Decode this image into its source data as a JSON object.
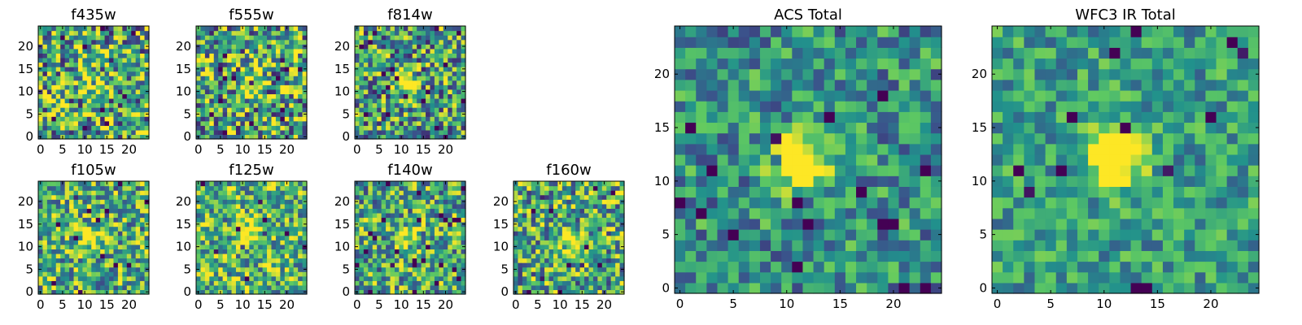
{
  "figure": {
    "colormap": "viridis",
    "colormap_stops": [
      "#440154",
      "#3b528b",
      "#21918c",
      "#5ec962",
      "#fde725"
    ]
  },
  "chart_data": [
    {
      "type": "heatmap",
      "title": "f435w",
      "grid_size": 25,
      "xlim": [
        0,
        24
      ],
      "ylim": [
        0,
        24
      ],
      "xticks": [
        0,
        5,
        10,
        15,
        20
      ],
      "yticks": [
        0,
        5,
        10,
        15,
        20
      ],
      "blob_center": [
        11,
        12
      ],
      "blob_strength": 0.25,
      "noise_level": 1.0,
      "base_level": 0.6,
      "seed": 11
    },
    {
      "type": "heatmap",
      "title": "f555w",
      "grid_size": 25,
      "xlim": [
        0,
        24
      ],
      "ylim": [
        0,
        24
      ],
      "xticks": [
        0,
        5,
        10,
        15,
        20
      ],
      "yticks": [
        0,
        5,
        10,
        15,
        20
      ],
      "blob_center": [
        11,
        12
      ],
      "blob_strength": 0.35,
      "noise_level": 1.0,
      "base_level": 0.6,
      "seed": 23
    },
    {
      "type": "heatmap",
      "title": "f814w",
      "grid_size": 25,
      "xlim": [
        0,
        24
      ],
      "ylim": [
        0,
        24
      ],
      "xticks": [
        0,
        5,
        10,
        15,
        20
      ],
      "yticks": [
        0,
        5,
        10,
        15,
        20
      ],
      "blob_center": [
        11,
        12
      ],
      "blob_strength": 0.8,
      "noise_level": 0.9,
      "base_level": 0.55,
      "seed": 37
    },
    {
      "type": "heatmap",
      "title": "f105w",
      "grid_size": 25,
      "xlim": [
        0,
        24
      ],
      "ylim": [
        0,
        24
      ],
      "xticks": [
        0,
        5,
        10,
        15,
        20
      ],
      "yticks": [
        0,
        5,
        10,
        15,
        20
      ],
      "blob_center": [
        11,
        12
      ],
      "blob_strength": 0.5,
      "noise_level": 0.8,
      "base_level": 0.62,
      "seed": 41
    },
    {
      "type": "heatmap",
      "title": "f125w",
      "grid_size": 25,
      "xlim": [
        0,
        24
      ],
      "ylim": [
        0,
        24
      ],
      "xticks": [
        0,
        5,
        10,
        15,
        20
      ],
      "yticks": [
        0,
        5,
        10,
        15,
        20
      ],
      "blob_center": [
        12,
        13
      ],
      "blob_strength": 0.45,
      "noise_level": 0.8,
      "base_level": 0.66,
      "seed": 53
    },
    {
      "type": "heatmap",
      "title": "f140w",
      "grid_size": 25,
      "xlim": [
        0,
        24
      ],
      "ylim": [
        0,
        24
      ],
      "xticks": [
        0,
        5,
        10,
        15,
        20
      ],
      "yticks": [
        0,
        5,
        10,
        15,
        20
      ],
      "blob_center": [
        11,
        12
      ],
      "blob_strength": 0.45,
      "noise_level": 0.8,
      "base_level": 0.6,
      "seed": 67
    },
    {
      "type": "heatmap",
      "title": "f160w",
      "grid_size": 25,
      "xlim": [
        0,
        24
      ],
      "ylim": [
        0,
        24
      ],
      "xticks": [
        0,
        5,
        10,
        15,
        20
      ],
      "yticks": [
        0,
        5,
        10,
        15,
        20
      ],
      "blob_center": [
        12,
        11
      ],
      "blob_strength": 0.55,
      "noise_level": 0.85,
      "base_level": 0.6,
      "seed": 79
    },
    {
      "type": "heatmap",
      "title": "ACS Total",
      "grid_size": 25,
      "xlim": [
        0,
        24
      ],
      "ylim": [
        0,
        24
      ],
      "xticks": [
        0,
        5,
        10,
        15,
        20
      ],
      "yticks": [
        0,
        5,
        10,
        15,
        20
      ],
      "blob_center": [
        11,
        12
      ],
      "blob_strength": 0.9,
      "noise_level": 0.6,
      "base_level": 0.5,
      "seed": 83
    },
    {
      "type": "heatmap",
      "title": "WFC3 IR Total",
      "grid_size": 25,
      "xlim": [
        0,
        24
      ],
      "ylim": [
        0,
        24
      ],
      "xticks": [
        0,
        5,
        10,
        15,
        20
      ],
      "yticks": [
        0,
        5,
        10,
        15,
        20
      ],
      "blob_center": [
        11,
        12
      ],
      "blob_strength": 0.85,
      "noise_level": 0.5,
      "base_level": 0.55,
      "seed": 97
    }
  ]
}
